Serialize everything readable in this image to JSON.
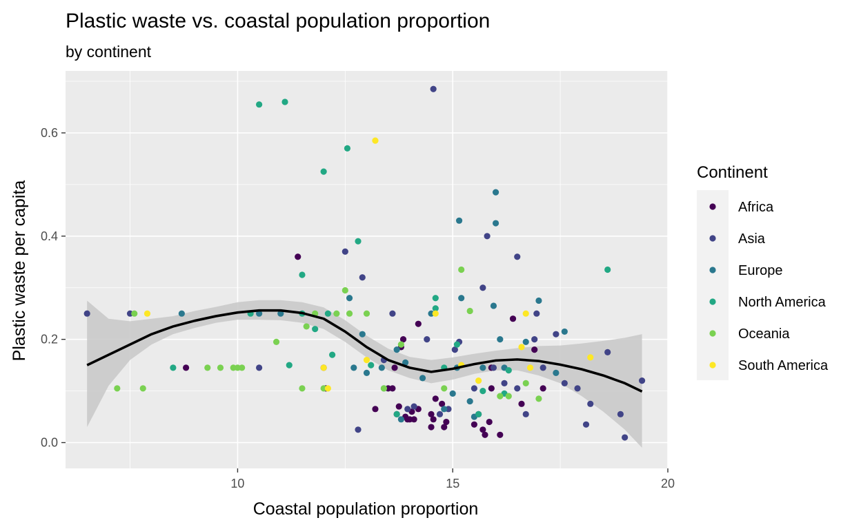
{
  "chart_data": {
    "type": "scatter",
    "title": "Plastic waste vs. coastal population proportion",
    "subtitle": "by continent",
    "xlabel": "Coastal population proportion",
    "ylabel": "Plastic waste per capita",
    "xlim": [
      6.0,
      20.0
    ],
    "ylim": [
      -0.05,
      0.72
    ],
    "x_ticks": [
      10,
      15,
      20
    ],
    "x_tick_labels": [
      "10",
      "15",
      "20"
    ],
    "y_ticks": [
      0.0,
      0.2,
      0.4,
      0.6
    ],
    "y_tick_labels": [
      "0.0",
      "0.2",
      "0.4",
      "0.6"
    ],
    "grid": true,
    "legend": {
      "title": "Continent",
      "position": "right"
    },
    "colors": {
      "panel": "#ebebeb",
      "grid_major": "#ffffff",
      "smooth_line": "#000000",
      "ribbon": "#c8c8c8"
    },
    "series": [
      {
        "name": "Africa",
        "color": "#440154",
        "points": [
          [
            8.8,
            0.145
          ],
          [
            11.4,
            0.36
          ],
          [
            12.0,
            0.145
          ],
          [
            12.05,
            0.105
          ],
          [
            13.2,
            0.065
          ],
          [
            13.5,
            0.105
          ],
          [
            13.6,
            0.105
          ],
          [
            13.7,
            0.055
          ],
          [
            13.75,
            0.07
          ],
          [
            13.8,
            0.185
          ],
          [
            13.85,
            0.2
          ],
          [
            13.9,
            0.05
          ],
          [
            13.95,
            0.045
          ],
          [
            14.0,
            0.045
          ],
          [
            14.05,
            0.06
          ],
          [
            14.1,
            0.045
          ],
          [
            14.2,
            0.065
          ],
          [
            14.2,
            0.23
          ],
          [
            14.5,
            0.03
          ],
          [
            14.5,
            0.055
          ],
          [
            14.55,
            0.045
          ],
          [
            14.6,
            0.085
          ],
          [
            14.75,
            0.075
          ],
          [
            14.8,
            0.03
          ],
          [
            14.85,
            0.04
          ],
          [
            15.5,
            0.035
          ],
          [
            15.6,
            0.055
          ],
          [
            15.7,
            0.025
          ],
          [
            15.75,
            0.015
          ],
          [
            15.85,
            0.04
          ],
          [
            15.9,
            0.145
          ],
          [
            16.1,
            0.015
          ],
          [
            16.4,
            0.24
          ],
          [
            16.6,
            0.075
          ],
          [
            16.9,
            0.18
          ],
          [
            17.1,
            0.105
          ],
          [
            15.9,
            0.105
          ],
          [
            13.65,
            0.145
          ]
        ]
      },
      {
        "name": "Asia",
        "color": "#414487",
        "points": [
          [
            6.5,
            0.25
          ],
          [
            7.5,
            0.25
          ],
          [
            10.5,
            0.145
          ],
          [
            12.5,
            0.37
          ],
          [
            12.8,
            0.025
          ],
          [
            12.9,
            0.32
          ],
          [
            13.4,
            0.16
          ],
          [
            13.6,
            0.25
          ],
          [
            14.1,
            0.07
          ],
          [
            14.4,
            0.2
          ],
          [
            14.55,
            0.685
          ],
          [
            14.7,
            0.055
          ],
          [
            14.9,
            0.065
          ],
          [
            15.05,
            0.18
          ],
          [
            15.15,
            0.195
          ],
          [
            15.5,
            0.105
          ],
          [
            15.7,
            0.3
          ],
          [
            15.8,
            0.4
          ],
          [
            15.95,
            0.145
          ],
          [
            16.2,
            0.115
          ],
          [
            16.5,
            0.36
          ],
          [
            16.5,
            0.105
          ],
          [
            16.7,
            0.055
          ],
          [
            16.9,
            0.2
          ],
          [
            16.95,
            0.25
          ],
          [
            17.1,
            0.145
          ],
          [
            17.4,
            0.21
          ],
          [
            17.6,
            0.115
          ],
          [
            17.9,
            0.105
          ],
          [
            18.1,
            0.035
          ],
          [
            18.2,
            0.075
          ],
          [
            18.6,
            0.175
          ],
          [
            18.9,
            0.055
          ],
          [
            19.0,
            0.01
          ],
          [
            19.4,
            0.12
          ],
          [
            13.95,
            0.065
          ]
        ]
      },
      {
        "name": "Europe",
        "color": "#2a788e",
        "points": [
          [
            8.7,
            0.25
          ],
          [
            10.5,
            0.25
          ],
          [
            11.0,
            0.25
          ],
          [
            12.6,
            0.28
          ],
          [
            12.7,
            0.145
          ],
          [
            12.9,
            0.21
          ],
          [
            13.0,
            0.135
          ],
          [
            13.35,
            0.145
          ],
          [
            13.8,
            0.045
          ],
          [
            13.9,
            0.155
          ],
          [
            14.3,
            0.125
          ],
          [
            14.5,
            0.25
          ],
          [
            14.8,
            0.065
          ],
          [
            15.0,
            0.095
          ],
          [
            15.1,
            0.145
          ],
          [
            15.15,
            0.43
          ],
          [
            15.2,
            0.28
          ],
          [
            15.4,
            0.08
          ],
          [
            15.5,
            0.05
          ],
          [
            15.7,
            0.145
          ],
          [
            15.95,
            0.265
          ],
          [
            16.0,
            0.485
          ],
          [
            16.0,
            0.425
          ],
          [
            16.1,
            0.2
          ],
          [
            16.2,
            0.145
          ],
          [
            16.7,
            0.195
          ],
          [
            17.0,
            0.275
          ],
          [
            17.4,
            0.135
          ],
          [
            17.6,
            0.215
          ],
          [
            13.7,
            0.18
          ]
        ]
      },
      {
        "name": "North America",
        "color": "#22a884",
        "points": [
          [
            8.5,
            0.145
          ],
          [
            10.5,
            0.655
          ],
          [
            11.1,
            0.66
          ],
          [
            11.2,
            0.15
          ],
          [
            11.5,
            0.325
          ],
          [
            11.8,
            0.22
          ],
          [
            12.0,
            0.525
          ],
          [
            12.1,
            0.25
          ],
          [
            12.2,
            0.17
          ],
          [
            12.55,
            0.57
          ],
          [
            12.8,
            0.39
          ],
          [
            13.1,
            0.15
          ],
          [
            13.4,
            0.105
          ],
          [
            13.7,
            0.055
          ],
          [
            14.6,
            0.28
          ],
          [
            14.6,
            0.26
          ],
          [
            14.8,
            0.145
          ],
          [
            15.1,
            0.19
          ],
          [
            15.6,
            0.055
          ],
          [
            15.7,
            0.1
          ],
          [
            16.2,
            0.095
          ],
          [
            16.3,
            0.14
          ],
          [
            18.6,
            0.335
          ],
          [
            10.3,
            0.25
          ],
          [
            11.5,
            0.25
          ]
        ]
      },
      {
        "name": "Oceania",
        "color": "#7ad151",
        "points": [
          [
            7.2,
            0.105
          ],
          [
            7.6,
            0.25
          ],
          [
            7.8,
            0.105
          ],
          [
            9.3,
            0.145
          ],
          [
            9.6,
            0.145
          ],
          [
            9.9,
            0.145
          ],
          [
            10.1,
            0.145
          ],
          [
            10.9,
            0.195
          ],
          [
            11.5,
            0.105
          ],
          [
            11.6,
            0.225
          ],
          [
            11.8,
            0.25
          ],
          [
            12.0,
            0.105
          ],
          [
            12.3,
            0.25
          ],
          [
            12.5,
            0.295
          ],
          [
            12.6,
            0.25
          ],
          [
            13.0,
            0.25
          ],
          [
            13.4,
            0.105
          ],
          [
            13.8,
            0.19
          ],
          [
            14.8,
            0.105
          ],
          [
            15.2,
            0.335
          ],
          [
            15.4,
            0.255
          ],
          [
            16.1,
            0.09
          ],
          [
            16.3,
            0.09
          ],
          [
            16.7,
            0.115
          ],
          [
            17.0,
            0.085
          ],
          [
            10.0,
            0.145
          ]
        ]
      },
      {
        "name": "South America",
        "color": "#fde725",
        "points": [
          [
            7.9,
            0.25
          ],
          [
            12.0,
            0.145
          ],
          [
            12.1,
            0.105
          ],
          [
            13.2,
            0.585
          ],
          [
            14.6,
            0.25
          ],
          [
            15.2,
            0.15
          ],
          [
            15.6,
            0.12
          ],
          [
            16.6,
            0.185
          ],
          [
            16.7,
            0.25
          ],
          [
            16.8,
            0.145
          ],
          [
            18.2,
            0.165
          ],
          [
            13.0,
            0.16
          ]
        ]
      }
    ],
    "smooth": {
      "x": [
        6.5,
        7.0,
        7.5,
        8.0,
        8.5,
        9.0,
        9.5,
        10.0,
        10.5,
        11.0,
        11.5,
        12.0,
        12.5,
        13.0,
        13.5,
        14.0,
        14.5,
        15.0,
        15.5,
        16.0,
        16.5,
        17.0,
        17.5,
        18.0,
        18.5,
        19.0,
        19.4
      ],
      "y": [
        0.15,
        0.17,
        0.19,
        0.21,
        0.225,
        0.236,
        0.245,
        0.252,
        0.256,
        0.256,
        0.251,
        0.24,
        0.215,
        0.185,
        0.16,
        0.145,
        0.137,
        0.143,
        0.152,
        0.159,
        0.161,
        0.158,
        0.151,
        0.142,
        0.13,
        0.115,
        0.099
      ],
      "lower": [
        0.03,
        0.11,
        0.16,
        0.19,
        0.21,
        0.222,
        0.232,
        0.238,
        0.238,
        0.237,
        0.232,
        0.22,
        0.195,
        0.165,
        0.14,
        0.125,
        0.115,
        0.122,
        0.133,
        0.14,
        0.14,
        0.13,
        0.115,
        0.09,
        0.06,
        0.025,
        -0.01
      ],
      "upper": [
        0.275,
        0.24,
        0.235,
        0.24,
        0.245,
        0.255,
        0.263,
        0.272,
        0.276,
        0.276,
        0.272,
        0.262,
        0.237,
        0.207,
        0.182,
        0.166,
        0.16,
        0.165,
        0.172,
        0.178,
        0.183,
        0.187,
        0.188,
        0.192,
        0.197,
        0.203,
        0.21
      ]
    }
  }
}
